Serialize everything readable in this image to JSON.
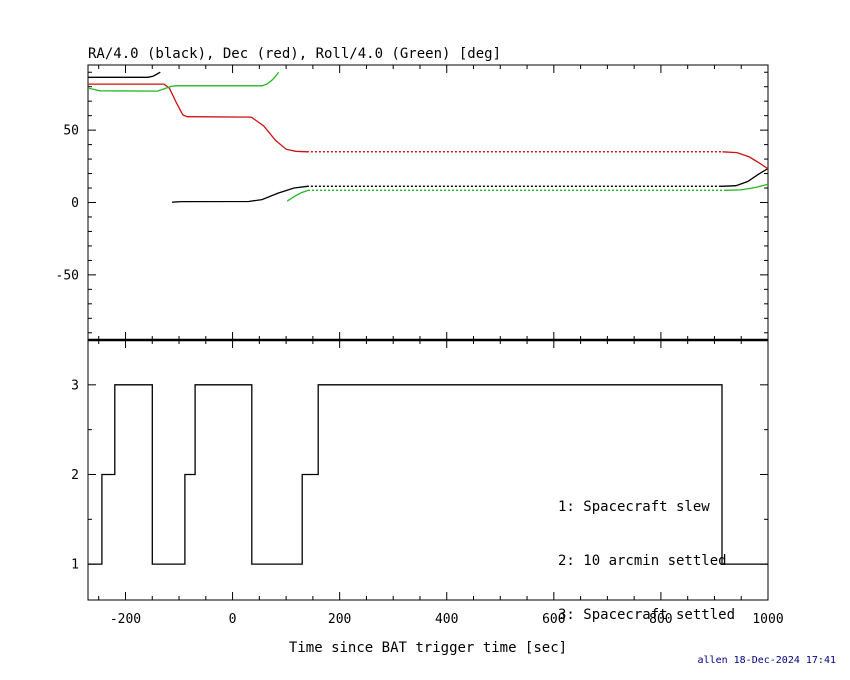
{
  "chart_data": {
    "type": "line",
    "title": "RA/4.0 (black), Dec (red), Roll/4.0 (Green) [deg]",
    "xlabel": "Time since BAT trigger time [sec]",
    "xlim": [
      -270,
      1000
    ],
    "x_major_ticks": [
      -200,
      0,
      200,
      400,
      600,
      800,
      1000
    ],
    "x_minor_step": 50,
    "footer": "allen 18-Dec-2024 17:41",
    "footer_color": "#000080",
    "panels": [
      {
        "name": "attitude",
        "ylim": [
          -95,
          95
        ],
        "y_major_ticks": [
          50,
          0,
          -50
        ],
        "y_minor_step": 10,
        "series": [
          {
            "name": "RA/4.0",
            "color": "#000000",
            "segments": [
              {
                "style": "solid",
                "points": [
                  [
                    -270,
                    86.5
                  ],
                  [
                    -158,
                    86.5
                  ],
                  [
                    -148,
                    87.3
                  ],
                  [
                    -135,
                    90
                  ]
                ]
              },
              {
                "style": "solid",
                "points": [
                  [
                    -113,
                    0.2
                  ],
                  [
                    -95,
                    0.6
                  ],
                  [
                    30,
                    0.7
                  ],
                  [
                    55,
                    2
                  ],
                  [
                    85,
                    6.5
                  ],
                  [
                    115,
                    10
                  ],
                  [
                    140,
                    11.2
                  ]
                ]
              },
              {
                "style": "dotted",
                "points": [
                  [
                    140,
                    11.2
                  ],
                  [
                    912,
                    11.2
                  ]
                ]
              },
              {
                "style": "solid",
                "points": [
                  [
                    912,
                    11.2
                  ],
                  [
                    940,
                    11.6
                  ],
                  [
                    962,
                    14.5
                  ],
                  [
                    982,
                    19.5
                  ],
                  [
                    1000,
                    23.5
                  ]
                ]
              }
            ]
          },
          {
            "name": "Dec",
            "color": "#cc1111",
            "segments": [
              {
                "style": "solid",
                "points": [
                  [
                    -270,
                    81.8
                  ],
                  [
                    -128,
                    81.8
                  ],
                  [
                    -118,
                    79
                  ],
                  [
                    -105,
                    69
                  ],
                  [
                    -93,
                    60.5
                  ],
                  [
                    -85,
                    59.3
                  ],
                  [
                    35,
                    59
                  ],
                  [
                    58,
                    53
                  ],
                  [
                    80,
                    43
                  ],
                  [
                    100,
                    36.8
                  ],
                  [
                    118,
                    35.4
                  ],
                  [
                    140,
                    35
                  ]
                ]
              },
              {
                "style": "dotted",
                "points": [
                  [
                    140,
                    35
                  ],
                  [
                    915,
                    35
                  ]
                ]
              },
              {
                "style": "solid",
                "points": [
                  [
                    915,
                    35
                  ],
                  [
                    942,
                    34.5
                  ],
                  [
                    965,
                    31.5
                  ],
                  [
                    985,
                    27
                  ],
                  [
                    1000,
                    23.2
                  ]
                ]
              }
            ]
          },
          {
            "name": "Roll/4.0",
            "color": "#22bb22",
            "segments": [
              {
                "style": "solid",
                "points": [
                  [
                    -270,
                    79
                  ],
                  [
                    -260,
                    78.2
                  ],
                  [
                    -248,
                    77.2
                  ],
                  [
                    -140,
                    77
                  ],
                  [
                    -128,
                    78.5
                  ],
                  [
                    -115,
                    80.2
                  ],
                  [
                    -105,
                    80.6
                  ],
                  [
                    55,
                    80.6
                  ],
                  [
                    65,
                    82
                  ],
                  [
                    75,
                    85
                  ],
                  [
                    82,
                    88
                  ],
                  [
                    86,
                    90
                  ]
                ]
              },
              {
                "style": "solid",
                "points": [
                  [
                    102,
                    1
                  ],
                  [
                    115,
                    4
                  ],
                  [
                    128,
                    6.8
                  ],
                  [
                    142,
                    8.4
                  ]
                ]
              },
              {
                "style": "dotted",
                "points": [
                  [
                    142,
                    8.4
                  ],
                  [
                    918,
                    8.4
                  ]
                ]
              },
              {
                "style": "solid",
                "points": [
                  [
                    918,
                    8.4
                  ],
                  [
                    950,
                    8.7
                  ],
                  [
                    975,
                    10.3
                  ],
                  [
                    1000,
                    12.6
                  ]
                ]
              }
            ]
          }
        ]
      },
      {
        "name": "settling-state",
        "ylim": [
          0.6,
          3.5
        ],
        "y_major_ticks": [
          3,
          2,
          1
        ],
        "y_minor_step": 0.5,
        "legend": [
          "1: Spacecraft slew",
          "2: 10 arcmin settled",
          "3: Spacecraft settled"
        ],
        "series": [
          {
            "name": "state",
            "color": "#000000",
            "segments": [
              {
                "style": "solid",
                "points": [
                  [
                    -270,
                    1
                  ],
                  [
                    -244,
                    1
                  ],
                  [
                    -244,
                    2
                  ],
                  [
                    -220,
                    2
                  ],
                  [
                    -220,
                    3
                  ],
                  [
                    -150,
                    3
                  ],
                  [
                    -150,
                    1
                  ],
                  [
                    -89,
                    1
                  ],
                  [
                    -89,
                    2
                  ],
                  [
                    -70,
                    2
                  ],
                  [
                    -70,
                    3
                  ],
                  [
                    36,
                    3
                  ],
                  [
                    36,
                    1
                  ],
                  [
                    130,
                    1
                  ],
                  [
                    130,
                    2
                  ],
                  [
                    160,
                    2
                  ],
                  [
                    160,
                    3
                  ],
                  [
                    914,
                    3
                  ],
                  [
                    914,
                    1
                  ],
                  [
                    1000,
                    1
                  ]
                ]
              }
            ]
          }
        ]
      }
    ]
  }
}
